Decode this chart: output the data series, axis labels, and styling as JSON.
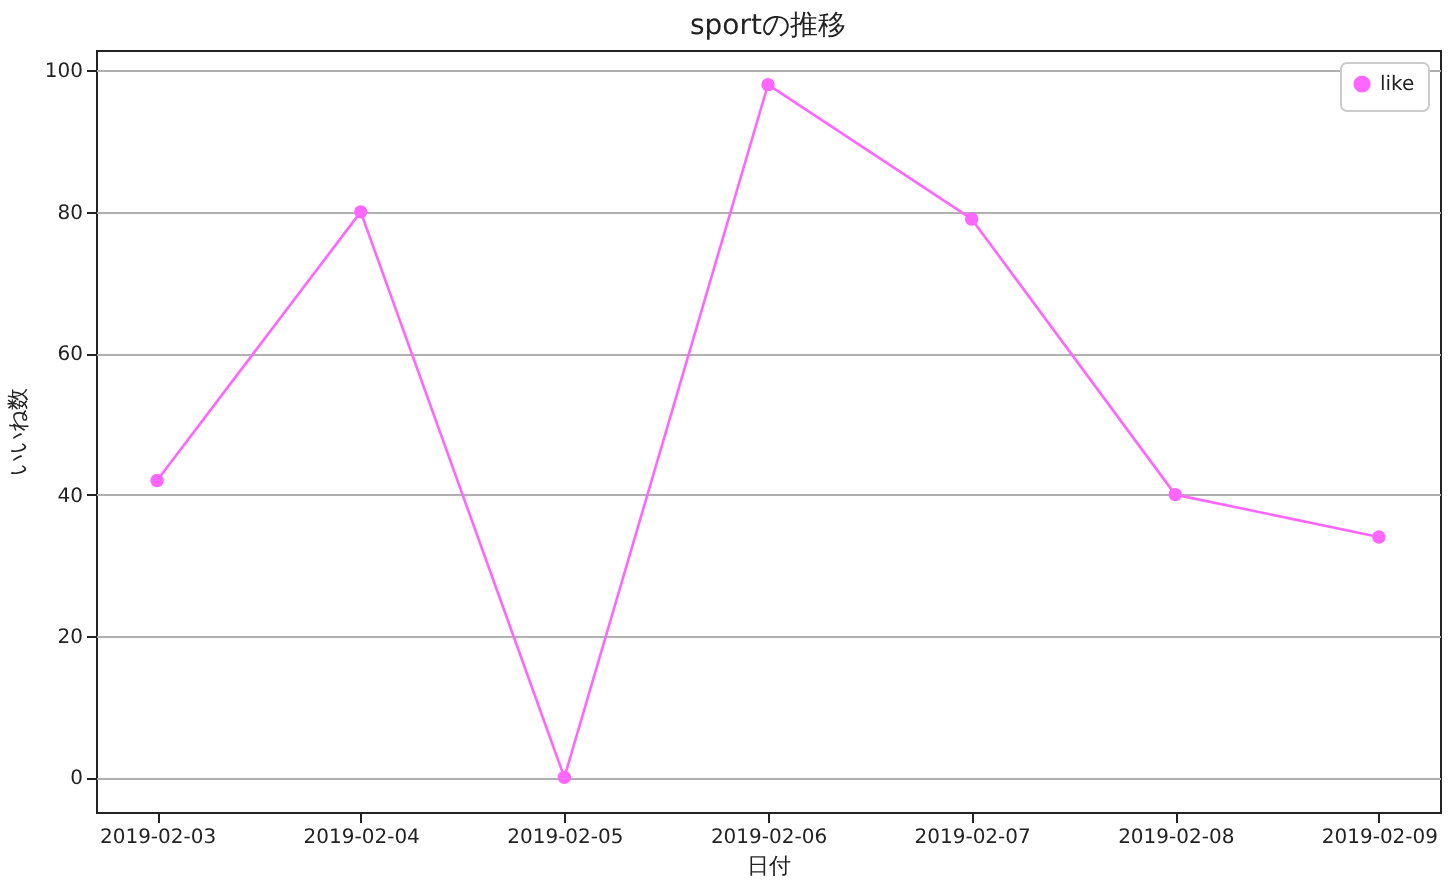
{
  "chart_data": {
    "type": "line",
    "title": "sportの推移",
    "xlabel": "日付",
    "ylabel": "いいね数",
    "categories": [
      "2019-02-03",
      "2019-02-04",
      "2019-02-05",
      "2019-02-06",
      "2019-02-07",
      "2019-02-08",
      "2019-02-09"
    ],
    "series": [
      {
        "name": "like",
        "color": "#ff66ff",
        "values": [
          42,
          80,
          0,
          98,
          79,
          40,
          34
        ]
      }
    ],
    "ylim": [
      -4.9,
      102.9
    ],
    "yticks": [
      0,
      20,
      40,
      60,
      80,
      100
    ],
    "grid": "y",
    "legend": "top right",
    "marker": "circle",
    "line_style": "solid"
  }
}
